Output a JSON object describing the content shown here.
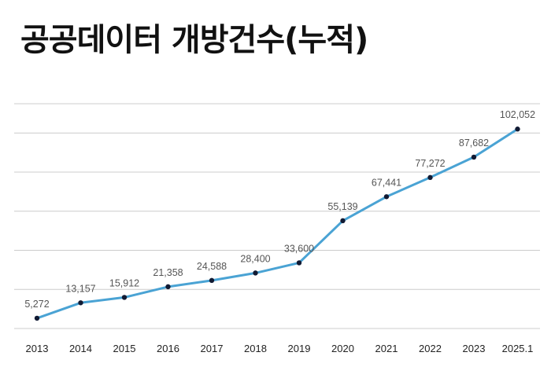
{
  "chart_data": {
    "type": "line",
    "title": "공공데이터 개방건수(누적)",
    "categories": [
      "2013",
      "2014",
      "2015",
      "2016",
      "2017",
      "2018",
      "2019",
      "2020",
      "2021",
      "2022",
      "2023",
      "2025.1"
    ],
    "values": [
      5272,
      13157,
      15912,
      21358,
      24588,
      28400,
      33600,
      55139,
      67441,
      77272,
      87682,
      102052
    ],
    "value_labels": [
      "5,272",
      "13,157",
      "15,912",
      "21,358",
      "24,588",
      "28,400",
      "33,600",
      "55,139",
      "67,441",
      "77,272",
      "87,682",
      "102,052"
    ],
    "ylim": [
      0,
      115000
    ],
    "grid": true,
    "line_color": "#4aa3d4",
    "marker_color": "#111a33",
    "grid_color": "#cccccc"
  }
}
